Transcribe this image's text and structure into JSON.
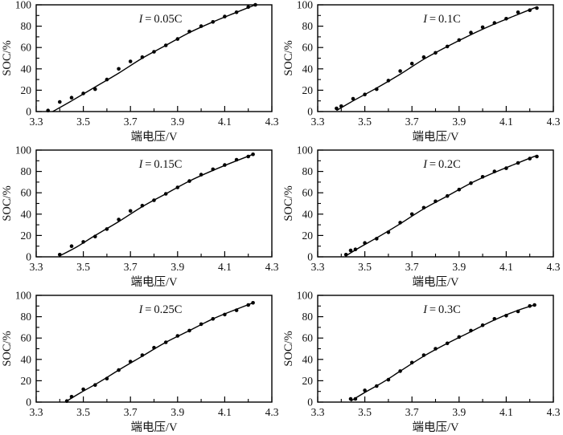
{
  "figure": {
    "background_color": "#ffffff",
    "line_color": "#000000",
    "point_color": "#000000",
    "text_color": "#111111",
    "layout": "2x3 grid of subplots"
  },
  "chart_data": [
    {
      "type": "scatter",
      "title": "I = 0.05C",
      "xlabel": "端电压/V",
      "ylabel": "SOC/%",
      "xlim": [
        3.3,
        4.3
      ],
      "ylim": [
        0,
        100
      ],
      "xticks": [
        3.3,
        3.5,
        3.7,
        3.9,
        4.1,
        4.3
      ],
      "xminor": [
        3.4,
        3.6,
        3.8,
        4.0,
        4.2
      ],
      "yticks": [
        0,
        20,
        40,
        60,
        80,
        100
      ],
      "yminor": [
        10,
        30,
        50,
        70,
        90
      ],
      "grid": false,
      "points": [
        [
          3.35,
          1
        ],
        [
          3.4,
          9
        ],
        [
          3.45,
          13
        ],
        [
          3.5,
          17
        ],
        [
          3.55,
          21
        ],
        [
          3.6,
          30
        ],
        [
          3.65,
          40
        ],
        [
          3.7,
          47
        ],
        [
          3.75,
          51
        ],
        [
          3.8,
          56
        ],
        [
          3.85,
          62
        ],
        [
          3.9,
          68
        ],
        [
          3.95,
          75
        ],
        [
          4.0,
          80
        ],
        [
          4.05,
          84
        ],
        [
          4.1,
          89
        ],
        [
          4.15,
          93
        ],
        [
          4.2,
          98
        ],
        [
          4.23,
          100
        ]
      ],
      "fit_line": [
        [
          3.37,
          0
        ],
        [
          3.45,
          10
        ],
        [
          3.55,
          23
        ],
        [
          3.65,
          36
        ],
        [
          3.75,
          50
        ],
        [
          3.85,
          62
        ],
        [
          3.95,
          74
        ],
        [
          4.05,
          84
        ],
        [
          4.15,
          93
        ],
        [
          4.23,
          100
        ]
      ]
    },
    {
      "type": "scatter",
      "title": "I = 0.1C",
      "xlabel": "端电压/V",
      "ylabel": "SOC/%",
      "xlim": [
        3.3,
        4.3
      ],
      "ylim": [
        0,
        100
      ],
      "xticks": [
        3.3,
        3.5,
        3.7,
        3.9,
        4.1,
        4.3
      ],
      "xminor": [
        3.4,
        3.6,
        3.8,
        4.0,
        4.2
      ],
      "yticks": [
        0,
        20,
        40,
        60,
        80,
        100
      ],
      "yminor": [
        10,
        30,
        50,
        70,
        90
      ],
      "grid": false,
      "points": [
        [
          3.38,
          3
        ],
        [
          3.4,
          5
        ],
        [
          3.45,
          12
        ],
        [
          3.5,
          16
        ],
        [
          3.55,
          21
        ],
        [
          3.6,
          29
        ],
        [
          3.65,
          38
        ],
        [
          3.7,
          45
        ],
        [
          3.75,
          51
        ],
        [
          3.8,
          55
        ],
        [
          3.85,
          61
        ],
        [
          3.9,
          67
        ],
        [
          3.95,
          74
        ],
        [
          4.0,
          79
        ],
        [
          4.05,
          83
        ],
        [
          4.1,
          87
        ],
        [
          4.15,
          93
        ],
        [
          4.2,
          95
        ],
        [
          4.23,
          97
        ]
      ],
      "fit_line": [
        [
          3.38,
          1
        ],
        [
          3.45,
          10
        ],
        [
          3.55,
          22
        ],
        [
          3.65,
          35
        ],
        [
          3.75,
          49
        ],
        [
          3.85,
          61
        ],
        [
          3.95,
          72
        ],
        [
          4.05,
          82
        ],
        [
          4.15,
          91
        ],
        [
          4.23,
          98
        ]
      ]
    },
    {
      "type": "scatter",
      "title": "I = 0.15C",
      "xlabel": "端电压/V",
      "ylabel": "SOC/%",
      "xlim": [
        3.3,
        4.3
      ],
      "ylim": [
        0,
        100
      ],
      "xticks": [
        3.3,
        3.5,
        3.7,
        3.9,
        4.1,
        4.3
      ],
      "xminor": [
        3.4,
        3.6,
        3.8,
        4.0,
        4.2
      ],
      "yticks": [
        0,
        20,
        40,
        60,
        80,
        100
      ],
      "yminor": [
        10,
        30,
        50,
        70,
        90
      ],
      "grid": false,
      "points": [
        [
          3.4,
          2
        ],
        [
          3.45,
          10
        ],
        [
          3.5,
          14
        ],
        [
          3.55,
          19
        ],
        [
          3.6,
          26
        ],
        [
          3.65,
          35
        ],
        [
          3.7,
          43
        ],
        [
          3.75,
          48
        ],
        [
          3.8,
          53
        ],
        [
          3.85,
          59
        ],
        [
          3.9,
          65
        ],
        [
          3.95,
          71
        ],
        [
          4.0,
          77
        ],
        [
          4.05,
          82
        ],
        [
          4.1,
          86
        ],
        [
          4.15,
          91
        ],
        [
          4.2,
          94
        ],
        [
          4.22,
          96
        ]
      ],
      "fit_line": [
        [
          3.4,
          1
        ],
        [
          3.47,
          9
        ],
        [
          3.55,
          20
        ],
        [
          3.65,
          33
        ],
        [
          3.75,
          47
        ],
        [
          3.85,
          59
        ],
        [
          3.95,
          71
        ],
        [
          4.05,
          81
        ],
        [
          4.15,
          90
        ],
        [
          4.22,
          96
        ]
      ]
    },
    {
      "type": "scatter",
      "title": "I = 0.2C",
      "xlabel": "端电压/V",
      "ylabel": "SOC/%",
      "xlim": [
        3.3,
        4.3
      ],
      "ylim": [
        0,
        100
      ],
      "xticks": [
        3.3,
        3.5,
        3.7,
        3.9,
        4.1,
        4.3
      ],
      "xminor": [
        3.4,
        3.6,
        3.8,
        4.0,
        4.2
      ],
      "yticks": [
        0,
        20,
        40,
        60,
        80,
        100
      ],
      "yminor": [
        10,
        30,
        50,
        70,
        90
      ],
      "grid": false,
      "points": [
        [
          3.42,
          2
        ],
        [
          3.44,
          6
        ],
        [
          3.46,
          7
        ],
        [
          3.5,
          13
        ],
        [
          3.55,
          17
        ],
        [
          3.6,
          23
        ],
        [
          3.65,
          32
        ],
        [
          3.7,
          40
        ],
        [
          3.75,
          46
        ],
        [
          3.8,
          52
        ],
        [
          3.85,
          57
        ],
        [
          3.9,
          63
        ],
        [
          3.95,
          69
        ],
        [
          4.0,
          75
        ],
        [
          4.05,
          80
        ],
        [
          4.1,
          83
        ],
        [
          4.15,
          88
        ],
        [
          4.2,
          92
        ],
        [
          4.23,
          94
        ]
      ],
      "fit_line": [
        [
          3.42,
          1
        ],
        [
          3.48,
          9
        ],
        [
          3.56,
          19
        ],
        [
          3.65,
          31
        ],
        [
          3.75,
          45
        ],
        [
          3.85,
          57
        ],
        [
          3.95,
          69
        ],
        [
          4.05,
          79
        ],
        [
          4.15,
          88
        ],
        [
          4.23,
          95
        ]
      ]
    },
    {
      "type": "scatter",
      "title": "I = 0.25C",
      "xlabel": "端电压/V",
      "ylabel": "SOC/%",
      "xlim": [
        3.3,
        4.3
      ],
      "ylim": [
        0,
        100
      ],
      "xticks": [
        3.3,
        3.5,
        3.7,
        3.9,
        4.1,
        4.3
      ],
      "xminor": [
        3.4,
        3.6,
        3.8,
        4.0,
        4.2
      ],
      "yticks": [
        0,
        20,
        40,
        60,
        80,
        100
      ],
      "yminor": [
        10,
        30,
        50,
        70,
        90
      ],
      "grid": false,
      "points": [
        [
          3.43,
          1
        ],
        [
          3.45,
          5
        ],
        [
          3.5,
          12
        ],
        [
          3.55,
          16
        ],
        [
          3.6,
          22
        ],
        [
          3.65,
          30
        ],
        [
          3.7,
          38
        ],
        [
          3.75,
          44
        ],
        [
          3.8,
          51
        ],
        [
          3.85,
          56
        ],
        [
          3.9,
          62
        ],
        [
          3.95,
          67
        ],
        [
          4.0,
          73
        ],
        [
          4.05,
          78
        ],
        [
          4.1,
          82
        ],
        [
          4.15,
          86
        ],
        [
          4.2,
          91
        ],
        [
          4.22,
          93
        ]
      ],
      "fit_line": [
        [
          3.43,
          1
        ],
        [
          3.49,
          9
        ],
        [
          3.57,
          19
        ],
        [
          3.65,
          30
        ],
        [
          3.75,
          43
        ],
        [
          3.85,
          56
        ],
        [
          3.95,
          67
        ],
        [
          4.05,
          78
        ],
        [
          4.15,
          87
        ],
        [
          4.22,
          93
        ]
      ]
    },
    {
      "type": "scatter",
      "title": "I = 0.3C",
      "xlabel": "端电压/V",
      "ylabel": "SOC/%",
      "xlim": [
        3.3,
        4.3
      ],
      "ylim": [
        0,
        100
      ],
      "xticks": [
        3.3,
        3.5,
        3.7,
        3.9,
        4.1,
        4.3
      ],
      "xminor": [
        3.4,
        3.6,
        3.8,
        4.0,
        4.2
      ],
      "yticks": [
        0,
        20,
        40,
        60,
        80,
        100
      ],
      "yminor": [
        10,
        30,
        50,
        70,
        90
      ],
      "grid": false,
      "points": [
        [
          3.44,
          3
        ],
        [
          3.46,
          3
        ],
        [
          3.5,
          11
        ],
        [
          3.55,
          15
        ],
        [
          3.6,
          21
        ],
        [
          3.65,
          29
        ],
        [
          3.7,
          37
        ],
        [
          3.75,
          44
        ],
        [
          3.8,
          50
        ],
        [
          3.85,
          55
        ],
        [
          3.9,
          61
        ],
        [
          3.95,
          67
        ],
        [
          4.0,
          72
        ],
        [
          4.05,
          78
        ],
        [
          4.1,
          81
        ],
        [
          4.15,
          85
        ],
        [
          4.2,
          90
        ],
        [
          4.22,
          91
        ]
      ],
      "fit_line": [
        [
          3.44,
          1
        ],
        [
          3.5,
          9
        ],
        [
          3.58,
          19
        ],
        [
          3.65,
          29
        ],
        [
          3.75,
          43
        ],
        [
          3.85,
          55
        ],
        [
          3.95,
          66
        ],
        [
          4.05,
          77
        ],
        [
          4.15,
          86
        ],
        [
          4.22,
          91
        ]
      ]
    }
  ]
}
